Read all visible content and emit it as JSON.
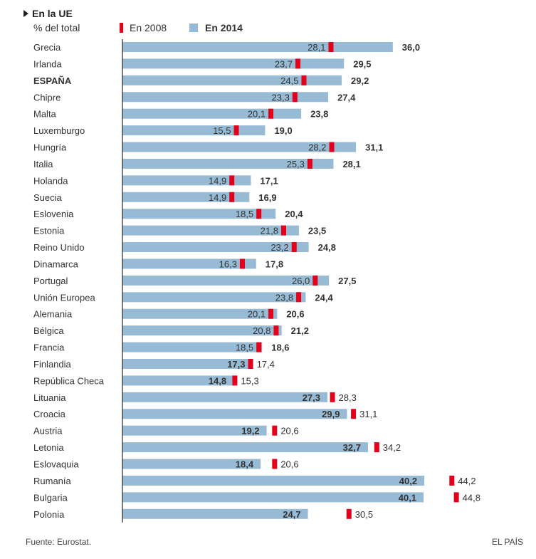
{
  "header": {
    "title": "En la UE",
    "subtitle": "% del total",
    "legend_2008": "En 2008",
    "legend_2014": "En 2014"
  },
  "footer": {
    "source": "Fuente: Eurostat.",
    "brand": "EL PAÍS"
  },
  "colors": {
    "bar_2014": "#98bbd5",
    "marker_2008": "#e2001a",
    "text": "#333333"
  },
  "chart_data": {
    "type": "bar",
    "orientation": "horizontal",
    "title": "En la UE",
    "subtitle": "% del total",
    "xlabel": "",
    "ylabel": "",
    "xlim": [
      0,
      46
    ],
    "grid": false,
    "legend": "top",
    "categories": [
      "Grecia",
      "Irlanda",
      "ESPAÑA",
      "Chipre",
      "Malta",
      "Luxemburgo",
      "Hungría",
      "Italia",
      "Holanda",
      "Suecia",
      "Eslovenia",
      "Estonia",
      "Reino Unido",
      "Dinamarca",
      "Portugal",
      "Unión Europea",
      "Alemania",
      "Bélgica",
      "Francia",
      "Finlandia",
      "República Checa",
      "Lituania",
      "Croacia",
      "Austria",
      "Letonia",
      "Eslovaquia",
      "Rumanía",
      "Bulgaria",
      "Polonia"
    ],
    "highlight": [
      "ESPAÑA"
    ],
    "series": [
      {
        "name": "En 2008",
        "mark": "marker",
        "values": [
          28.1,
          23.7,
          24.5,
          23.3,
          20.1,
          15.5,
          28.2,
          25.3,
          14.9,
          14.9,
          18.5,
          21.8,
          23.2,
          16.3,
          26.0,
          23.8,
          20.1,
          20.8,
          18.5,
          17.4,
          15.3,
          28.3,
          31.1,
          20.6,
          34.2,
          20.6,
          44.2,
          44.8,
          30.5
        ]
      },
      {
        "name": "En 2014",
        "mark": "bar",
        "values": [
          36.0,
          29.5,
          29.2,
          27.4,
          23.8,
          19.0,
          31.1,
          28.1,
          17.1,
          16.9,
          20.4,
          23.5,
          24.8,
          17.8,
          27.5,
          24.4,
          20.6,
          21.2,
          18.6,
          17.3,
          14.8,
          27.3,
          29.9,
          19.2,
          32.7,
          18.4,
          40.2,
          40.1,
          24.7
        ]
      }
    ],
    "labels_2008": [
      "28,1",
      "23,7",
      "24,5",
      "23,3",
      "20,1",
      "15,5",
      "28,2",
      "25,3",
      "14,9",
      "14,9",
      "18,5",
      "21,8",
      "23,2",
      "16,3",
      "26,0",
      "23,8",
      "20,1",
      "20,8",
      "18,5",
      "17,4",
      "15,3",
      "28,3",
      "31,1",
      "20,6",
      "34,2",
      "20,6",
      "44,2",
      "44,8",
      "30,5"
    ],
    "labels_2014": [
      "36,0",
      "29,5",
      "29,2",
      "27,4",
      "23,8",
      "19,0",
      "31,1",
      "28,1",
      "17,1",
      "16,9",
      "20,4",
      "23,5",
      "24,8",
      "17,8",
      "27,5",
      "24,4",
      "20,6",
      "21,2",
      "18,6",
      "17,3",
      "14,8",
      "27,3",
      "29,9",
      "19,2",
      "32,7",
      "18,4",
      "40,2",
      "40,1",
      "24,7"
    ]
  }
}
